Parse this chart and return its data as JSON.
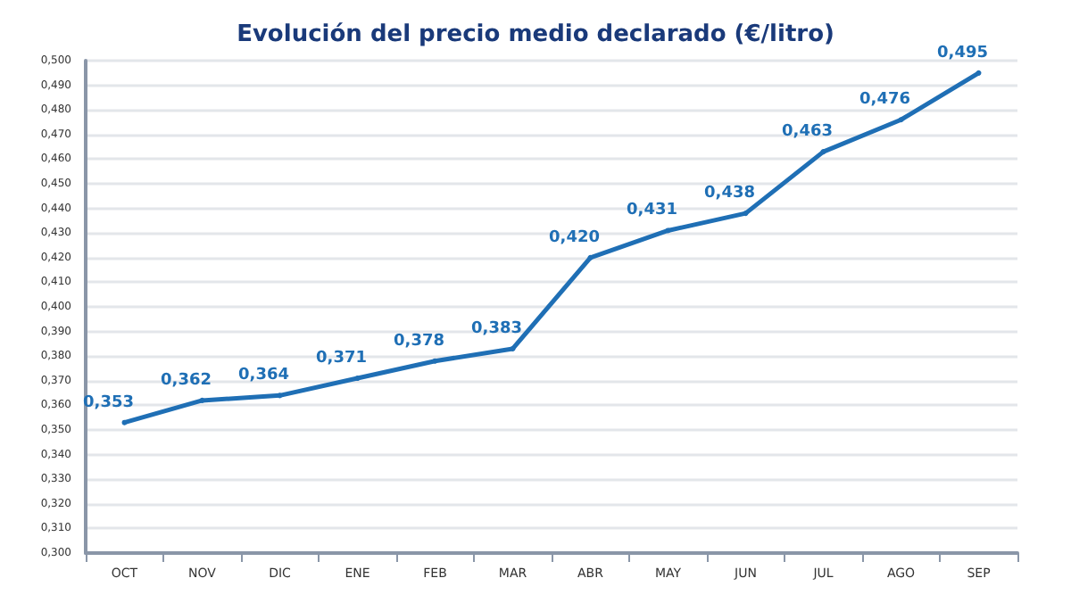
{
  "chart_data": {
    "type": "line",
    "title": "Evolución del precio medio declarado (€/litro)",
    "categories": [
      "OCT",
      "NOV",
      "DIC",
      "ENE",
      "FEB",
      "MAR",
      "ABR",
      "MAY",
      "JUN",
      "JUL",
      "AGO",
      "SEP"
    ],
    "values": [
      0.353,
      0.362,
      0.364,
      0.371,
      0.378,
      0.383,
      0.42,
      0.431,
      0.438,
      0.463,
      0.476,
      0.495
    ],
    "value_labels": [
      "0,353",
      "0,362",
      "0,364",
      "0,371",
      "0,378",
      "0,383",
      "0,420",
      "0,431",
      "0,438",
      "0,463",
      "0,476",
      "0,495"
    ],
    "color": "#1f6fb5",
    "ylim": [
      0.3,
      0.5
    ],
    "yticks": [
      {
        "value": 0.3,
        "label": "0,300"
      },
      {
        "value": 0.31,
        "label": "0,310"
      },
      {
        "value": 0.32,
        "label": "0,320"
      },
      {
        "value": 0.33,
        "label": "0,330"
      },
      {
        "value": 0.34,
        "label": "0,340"
      },
      {
        "value": 0.35,
        "label": "0,350"
      },
      {
        "value": 0.36,
        "label": "0,360"
      },
      {
        "value": 0.37,
        "label": "0,370"
      },
      {
        "value": 0.38,
        "label": "0,380"
      },
      {
        "value": 0.39,
        "label": "0,390"
      },
      {
        "value": 0.4,
        "label": "0,400"
      },
      {
        "value": 0.41,
        "label": "0,410"
      },
      {
        "value": 0.42,
        "label": "0,420"
      },
      {
        "value": 0.43,
        "label": "0,430"
      },
      {
        "value": 0.44,
        "label": "0,440"
      },
      {
        "value": 0.45,
        "label": "0,450"
      },
      {
        "value": 0.46,
        "label": "0,460"
      },
      {
        "value": 0.47,
        "label": "0,470"
      },
      {
        "value": 0.48,
        "label": "0,480"
      },
      {
        "value": 0.49,
        "label": "0,490"
      },
      {
        "value": 0.5,
        "label": "0,500"
      }
    ],
    "grid": "y",
    "marker": "circle",
    "line_style": "solid"
  }
}
